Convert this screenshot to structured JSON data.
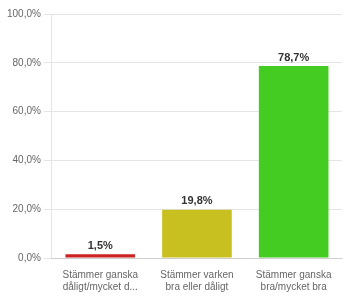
{
  "chart_data": {
    "type": "bar",
    "categories": [
      "Stämmer ganska\ndåligt/mycket d...",
      "Stämmer varken\nbra eller dåligt",
      "Stämmer ganska\nbra/mycket bra"
    ],
    "values": [
      1.5,
      19.8,
      78.7
    ],
    "value_labels": [
      "1,5%",
      "19,8%",
      "78,7%"
    ],
    "colors": [
      "#cc2222",
      "#c8c020",
      "#44cc22"
    ],
    "ylim": [
      0,
      100
    ],
    "yticks": [
      {
        "value": 0,
        "label": "0,0%"
      },
      {
        "value": 20,
        "label": "20,0%"
      },
      {
        "value": 40,
        "label": "40,0%"
      },
      {
        "value": 60,
        "label": "60,0%"
      },
      {
        "value": 80,
        "label": "80,0%"
      },
      {
        "value": 100,
        "label": "100,0%"
      }
    ],
    "grid": true,
    "data_labels": true
  }
}
